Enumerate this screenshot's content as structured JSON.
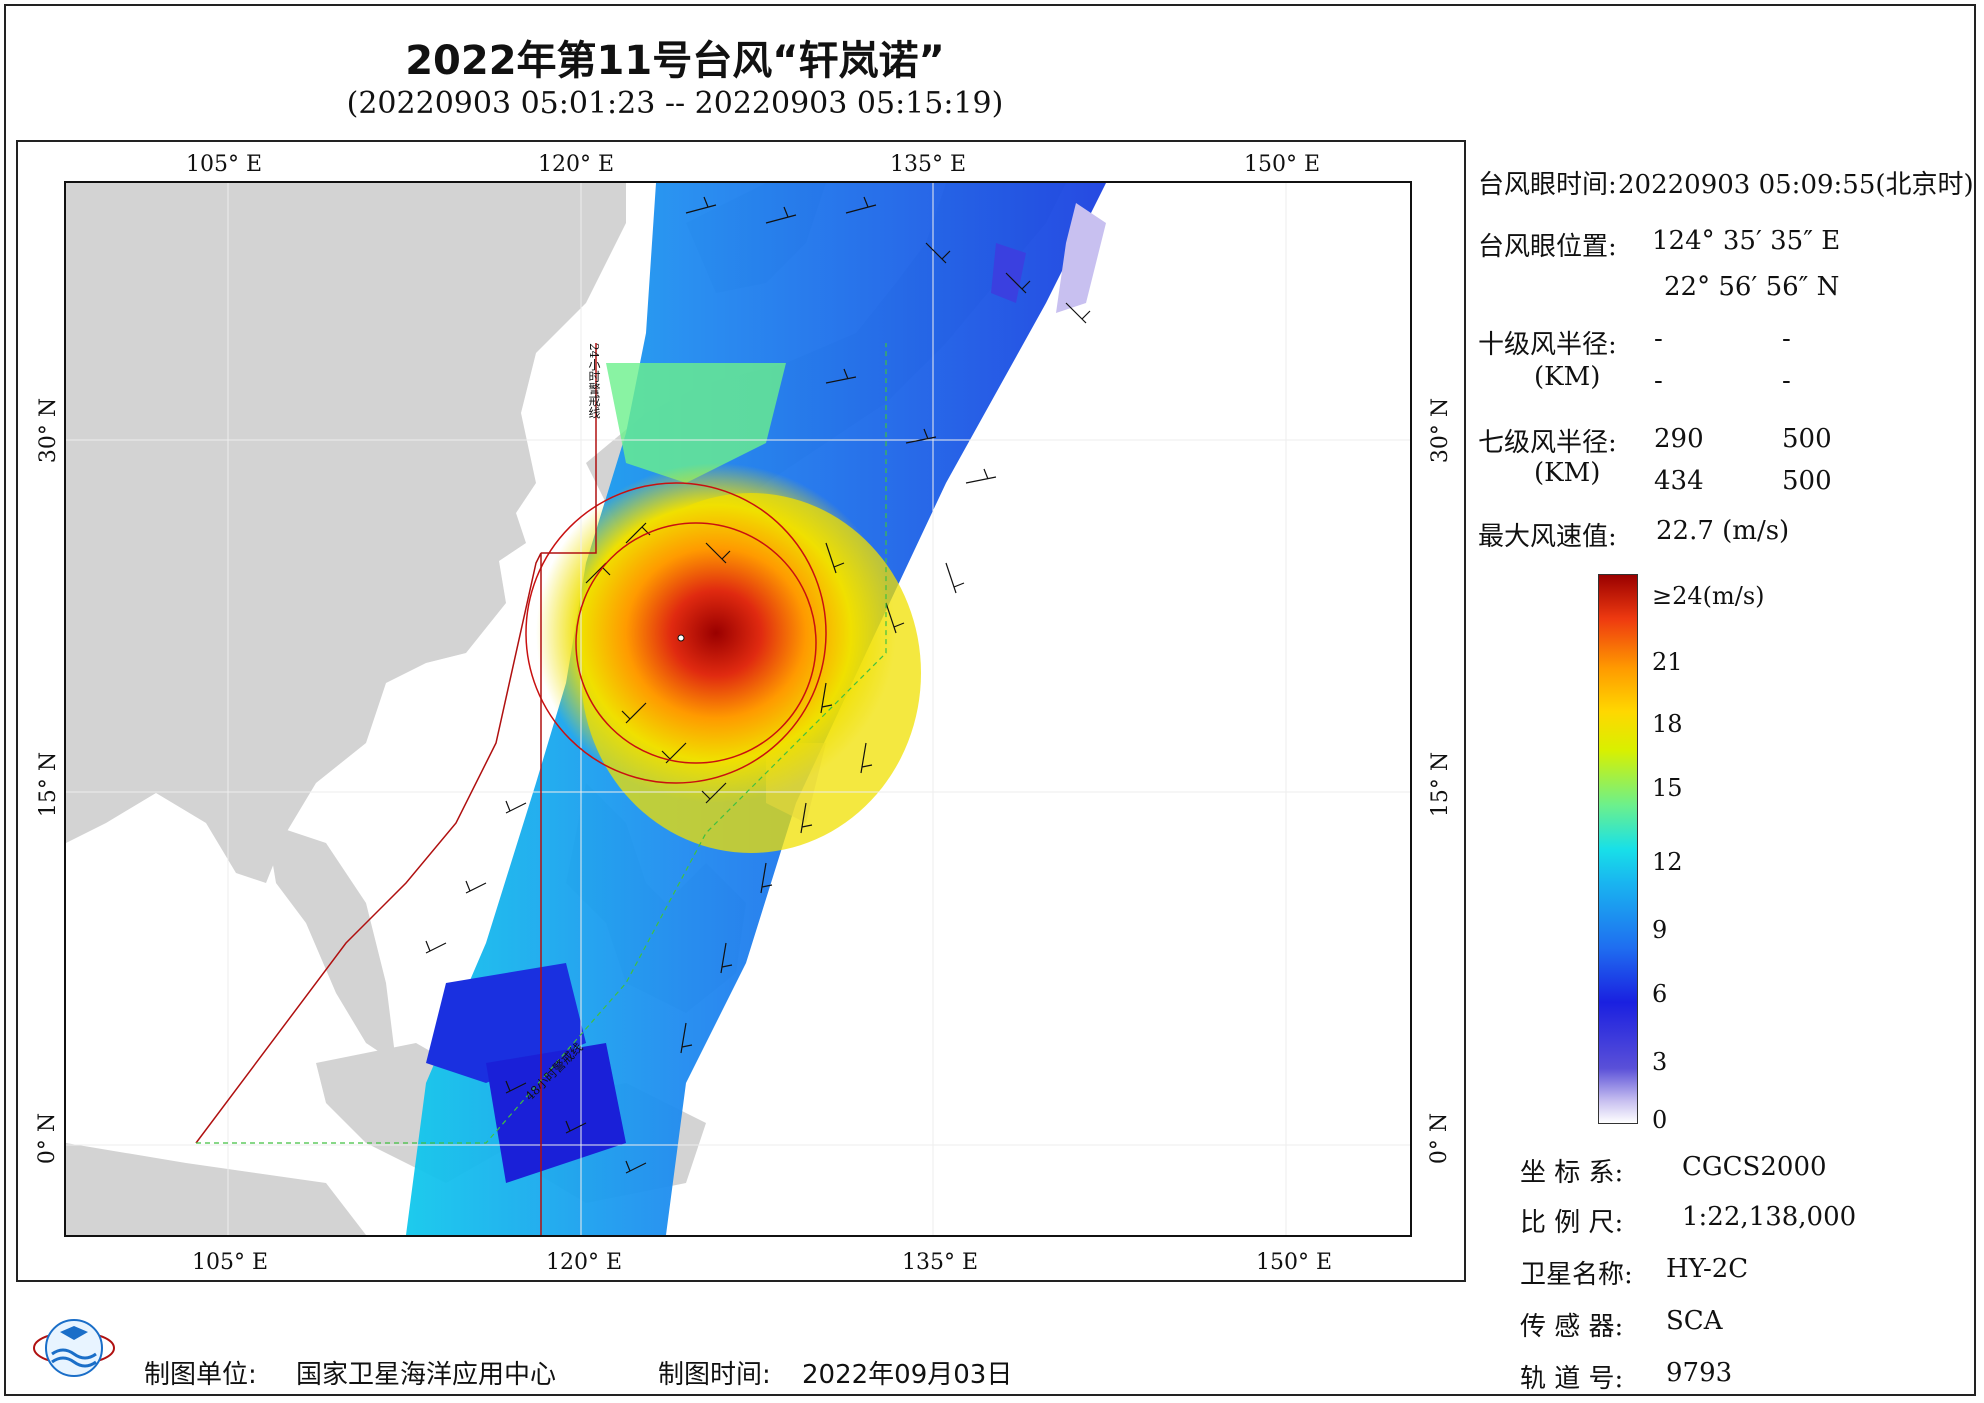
{
  "title": "2022年第11号台风“轩岚诺”",
  "subtitle": "(20220903 05:01:23 -- 20220903 05:15:19)",
  "map": {
    "top_lon_ticks": [
      "105° E",
      "120° E",
      "135° E",
      "150° E"
    ],
    "bottom_lon_ticks": [
      "105° E",
      "120° E",
      "135° E",
      "150° E"
    ],
    "left_lat_ticks": [
      "30° N",
      "15° N",
      "0° N"
    ],
    "right_lat_ticks": [
      "30° N",
      "15° N",
      "0° N"
    ],
    "line_label_1": "24小时警戒线",
    "line_label_2": "48小时警戒线",
    "land_color": "#d3d3d3",
    "boundary_color": "#b01010"
  },
  "info": {
    "eye_time_label": "台风眼时间:",
    "eye_time_value": "20220903 05:09:55(北京时)",
    "eye_pos_label": "台风眼位置:",
    "eye_lon": "124° 35′ 35″ E",
    "eye_lat": "22° 56′ 56″ N",
    "r10_label": "十级风半径:",
    "r10_unit": "(KM)",
    "r10_values": [
      "-",
      "-",
      "-",
      "-"
    ],
    "r7_label": "七级风半径:",
    "r7_unit": "(KM)",
    "r7_values": [
      "290",
      "500",
      "434",
      "500"
    ],
    "max_wind_label": "最大风速值:",
    "max_wind_value": "22.7  (m/s)"
  },
  "colorbar": {
    "labels": [
      "≥24(m/s)",
      "21",
      "18",
      "15",
      "12",
      "9",
      "6",
      "3",
      "0"
    ],
    "max_color": "#9a0000",
    "min_color": "#ffffff"
  },
  "meta": {
    "crs_label": "坐 标 系:",
    "crs_value": "CGCS2000",
    "scale_label": "比 例 尺:",
    "scale_value": "1:22,138,000",
    "satellite_label": "卫星名称:",
    "satellite_value": "HY-2C",
    "sensor_label": "传 感 器:",
    "sensor_value": "SCA",
    "orbit_label": "轨 道 号:",
    "orbit_value": "9793"
  },
  "footer": {
    "org_label": "制图单位:",
    "org_value": "国家卫星海洋应用中心",
    "date_label": "制图时间:",
    "date_value": "2022年09月03日"
  }
}
